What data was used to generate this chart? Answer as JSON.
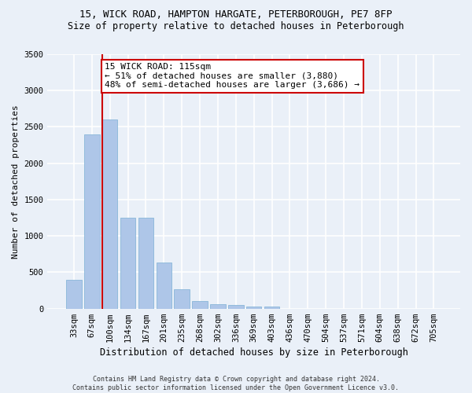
{
  "title_line1": "15, WICK ROAD, HAMPTON HARGATE, PETERBOROUGH, PE7 8FP",
  "title_line2": "Size of property relative to detached houses in Peterborough",
  "xlabel": "Distribution of detached houses by size in Peterborough",
  "ylabel": "Number of detached properties",
  "footnote": "Contains HM Land Registry data © Crown copyright and database right 2024.\nContains public sector information licensed under the Open Government Licence v3.0.",
  "bar_labels": [
    "33sqm",
    "67sqm",
    "100sqm",
    "134sqm",
    "167sqm",
    "201sqm",
    "235sqm",
    "268sqm",
    "302sqm",
    "336sqm",
    "369sqm",
    "403sqm",
    "436sqm",
    "470sqm",
    "504sqm",
    "537sqm",
    "571sqm",
    "604sqm",
    "638sqm",
    "672sqm",
    "705sqm"
  ],
  "bar_values": [
    400,
    2400,
    2600,
    1250,
    1250,
    630,
    270,
    110,
    60,
    50,
    30,
    25,
    0,
    0,
    0,
    0,
    0,
    0,
    0,
    0,
    0
  ],
  "bar_color": "#aec6e8",
  "bar_edge_color": "#7bafd4",
  "background_color": "#eaf0f8",
  "grid_color": "#ffffff",
  "ylim": [
    0,
    3500
  ],
  "yticks": [
    0,
    500,
    1000,
    1500,
    2000,
    2500,
    3000,
    3500
  ],
  "property_bar_index": 2,
  "red_line_color": "#cc0000",
  "annotation_text": "15 WICK ROAD: 115sqm\n← 51% of detached houses are smaller (3,880)\n48% of semi-detached houses are larger (3,686) →",
  "annotation_box_color": "#ffffff",
  "annotation_box_edge": "#cc0000",
  "title1_fontsize": 9,
  "title2_fontsize": 8.5,
  "xlabel_fontsize": 8.5,
  "ylabel_fontsize": 8,
  "tick_fontsize": 7.5,
  "annot_fontsize": 8,
  "footnote_fontsize": 6
}
